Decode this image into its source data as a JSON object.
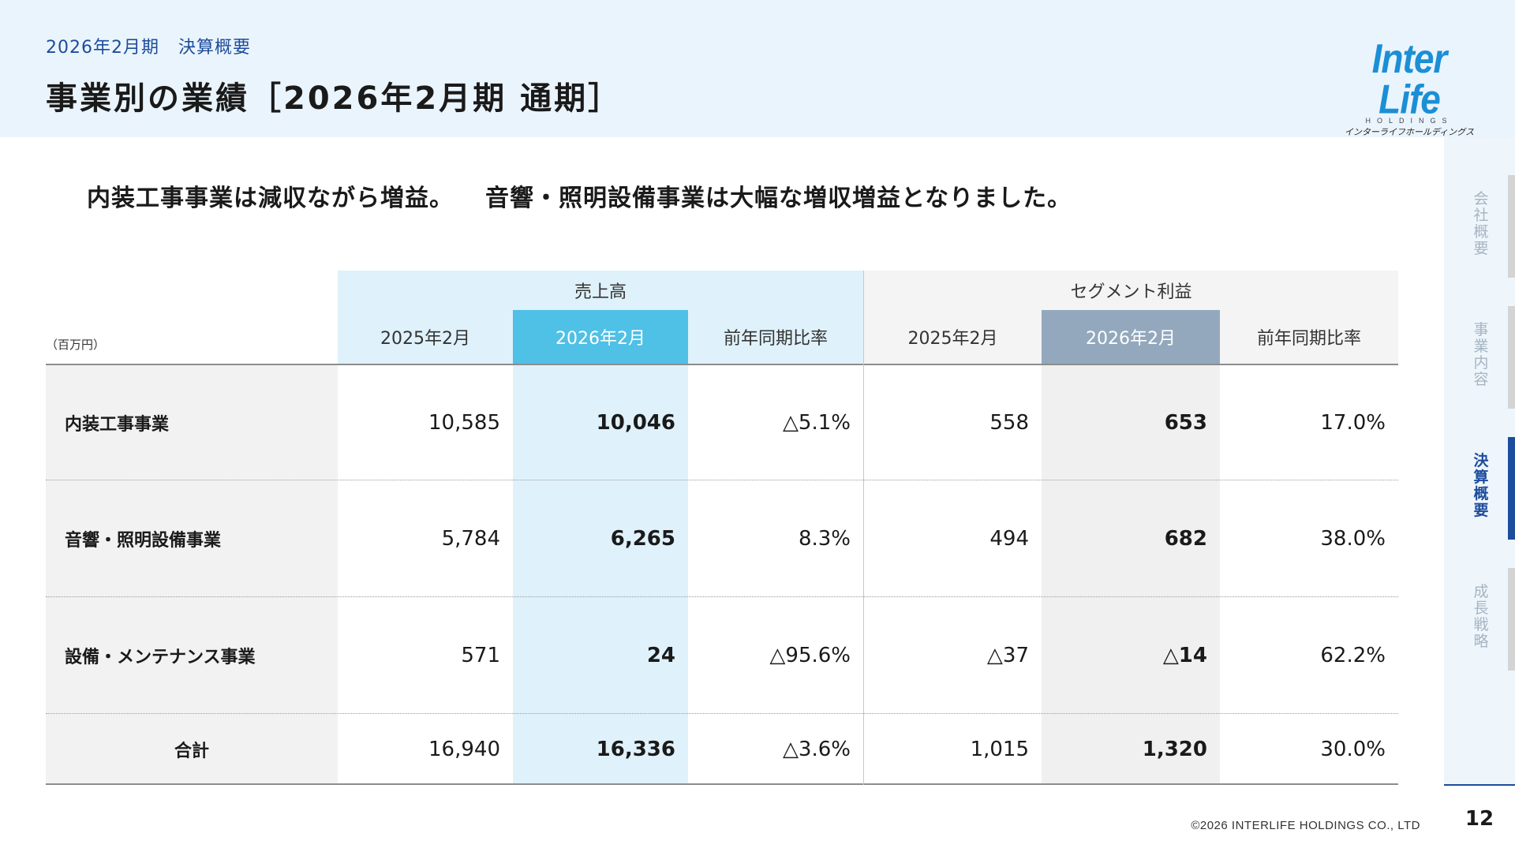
{
  "header": {
    "breadcrumb": [
      "2026年2月期",
      "決算概要"
    ],
    "title": "事業別の業績［2026年2月期 通期］",
    "logo": {
      "main": "Inter Life",
      "sub": "HOLDINGS",
      "kana": "インターライフホールディングス株式会社"
    }
  },
  "subtitle": [
    "内装工事事業は減収ながら増益。",
    "音響・照明設備事業は大幅な増収増益となりました。"
  ],
  "chart_data": {
    "type": "table",
    "unit": "（百万円）",
    "groups": [
      {
        "label": "売上高",
        "columns": [
          "2025年2月",
          "2026年2月",
          "前年同期比率"
        ]
      },
      {
        "label": "セグメント利益",
        "columns": [
          "2025年2月",
          "2026年2月",
          "前年同期比率"
        ]
      }
    ],
    "highlight_column": "2026年2月",
    "rows": [
      {
        "label": "内装工事事業",
        "values": [
          "10,585",
          "10,046",
          "△5.1%",
          "558",
          "653",
          "17.0%"
        ]
      },
      {
        "label": "音響・照明設備事業",
        "values": [
          "5,784",
          "6,265",
          "8.3%",
          "494",
          "682",
          "38.0%"
        ]
      },
      {
        "label": "設備・メンテナンス事業",
        "values": [
          "571",
          "24",
          "△95.6%",
          "△37",
          "△14",
          "62.2%"
        ]
      },
      {
        "label": "合計",
        "values": [
          "16,940",
          "16,336",
          "△3.6%",
          "1,015",
          "1,320",
          "30.0%"
        ]
      }
    ],
    "colors": {
      "sales_header": "#dff1fa",
      "sales_highlight": "#4fc0e6",
      "segment_header": "#f4f4f5",
      "segment_highlight": "#93a8bd"
    }
  },
  "sidenav": {
    "items": [
      {
        "label": "会社概要",
        "active": false
      },
      {
        "label": "事業内容",
        "active": false
      },
      {
        "label": "決算概要",
        "active": true
      },
      {
        "label": "成長戦略",
        "active": false
      }
    ]
  },
  "footer": {
    "copyright": "©2026 INTERLIFE HOLDINGS CO., LTD",
    "page": "12"
  }
}
